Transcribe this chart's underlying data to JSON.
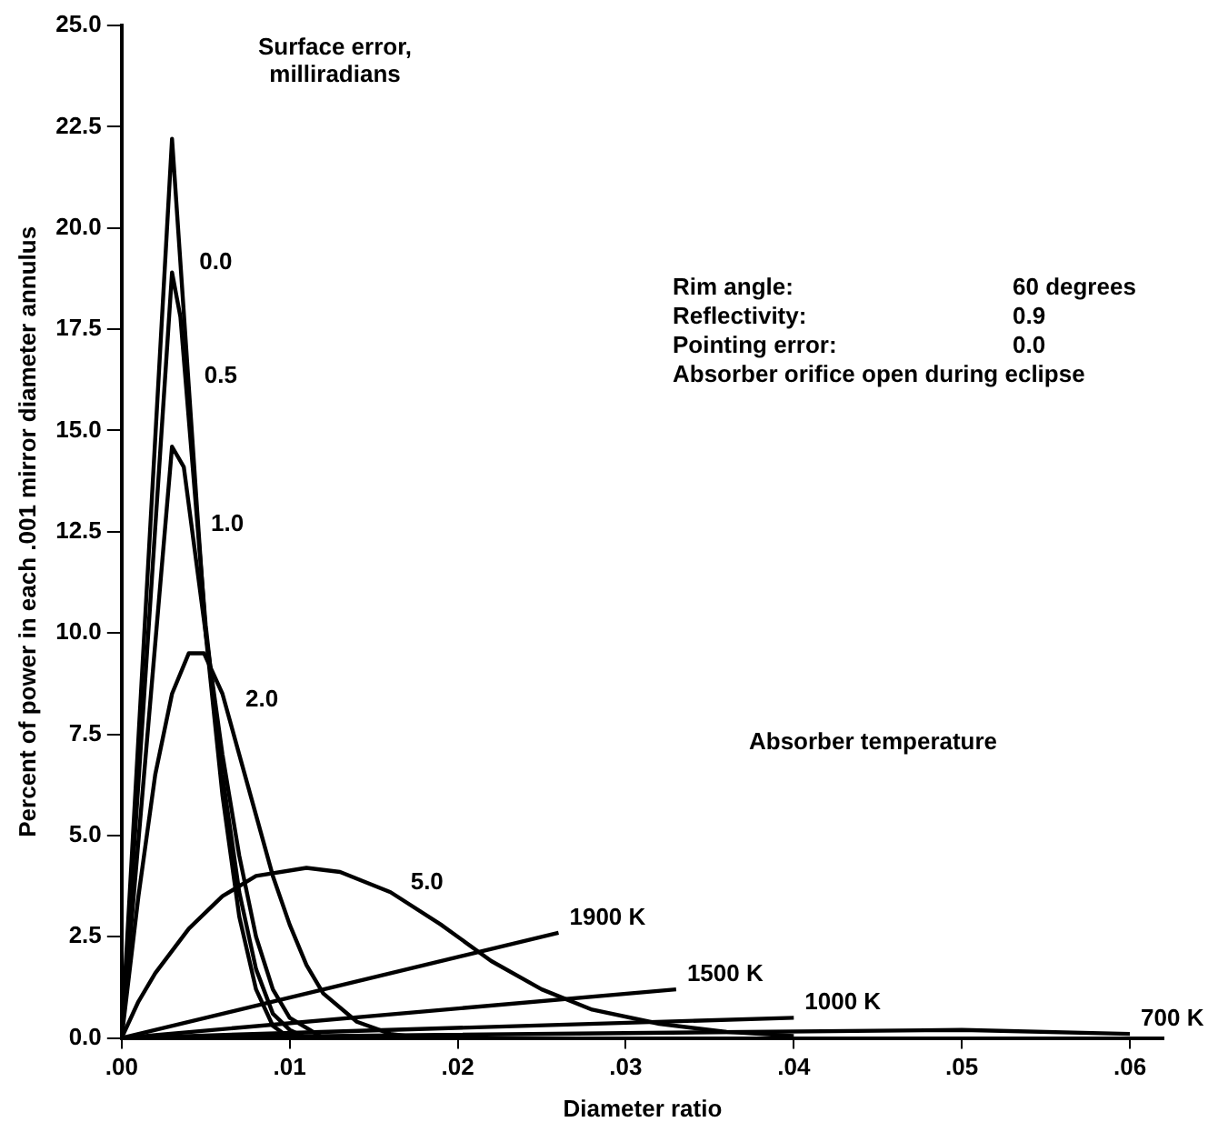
{
  "chart_data": {
    "type": "line",
    "xlabel": "Diameter ratio",
    "ylabel": "Percent of power in each .001 mirror diameter annulus",
    "xlim": [
      0,
      0.062
    ],
    "xticks": [
      {
        "value": 0,
        "label": ".00"
      },
      {
        "value": 0.01,
        "label": ".01"
      },
      {
        "value": 0.02,
        "label": ".02"
      },
      {
        "value": 0.03,
        "label": ".03"
      },
      {
        "value": 0.04,
        "label": ".04"
      },
      {
        "value": 0.05,
        "label": ".05"
      },
      {
        "value": 0.06,
        "label": ".06"
      }
    ],
    "ylim": [
      0,
      25
    ],
    "yticks": [
      {
        "value": 0,
        "label": "0.0"
      },
      {
        "value": 2.5,
        "label": "2.5"
      },
      {
        "value": 5,
        "label": "5.0"
      },
      {
        "value": 7.5,
        "label": "7.5"
      },
      {
        "value": 10,
        "label": "10.0"
      },
      {
        "value": 12.5,
        "label": "12.5"
      },
      {
        "value": 15,
        "label": "15.0"
      },
      {
        "value": 17.5,
        "label": "17.5"
      },
      {
        "value": 20,
        "label": "20.0"
      },
      {
        "value": 22.5,
        "label": "22.5"
      },
      {
        "value": 25,
        "label": "25.0"
      }
    ],
    "grid": false,
    "legend": false,
    "marker": "none",
    "annotations": [
      "Surface error,\nmilliradians",
      "Rim angle:",
      "60 degrees",
      "Reflectivity:",
      "0.9",
      "Pointing error:",
      "0.0",
      "Absorber orifice open during eclipse",
      "Absorber temperature"
    ],
    "series": [
      {
        "name": "0.0",
        "color": "#000000",
        "x": [
          0,
          0.003,
          0.0045,
          0.005,
          0.006,
          0.0065,
          0.007,
          0.008,
          0.009,
          0.01
        ],
        "values": [
          0,
          22.2,
          13,
          10,
          6,
          4.5,
          3,
          1.2,
          0.3,
          0
        ]
      },
      {
        "name": "0.5",
        "color": "#000000",
        "x": [
          0,
          0.003,
          0.0035,
          0.005,
          0.006,
          0.007,
          0.008,
          0.009,
          0.01,
          0.011
        ],
        "values": [
          0,
          18.9,
          17.8,
          10.2,
          6.5,
          3.6,
          1.7,
          0.6,
          0.2,
          0
        ]
      },
      {
        "name": "1.0",
        "color": "#000000",
        "x": [
          0,
          0.003,
          0.0037,
          0.005,
          0.006,
          0.007,
          0.008,
          0.009,
          0.01,
          0.012
        ],
        "values": [
          0,
          14.6,
          14.1,
          10,
          7,
          4.5,
          2.5,
          1.2,
          0.5,
          0
        ]
      },
      {
        "name": "2.0",
        "color": "#000000",
        "x": [
          0,
          0.001,
          0.002,
          0.003,
          0.004,
          0.0049,
          0.006,
          0.007,
          0.008,
          0.009,
          0.01,
          0.011,
          0.012,
          0.014,
          0.016,
          0.018
        ],
        "values": [
          0,
          3.5,
          6.5,
          8.5,
          9.5,
          9.5,
          8.5,
          7,
          5.5,
          4,
          2.8,
          1.8,
          1.1,
          0.4,
          0.1,
          0
        ]
      },
      {
        "name": "5.0",
        "color": "#000000",
        "x": [
          0,
          0.001,
          0.002,
          0.004,
          0.006,
          0.008,
          0.011,
          0.013,
          0.016,
          0.019,
          0.022,
          0.025,
          0.028,
          0.032,
          0.036,
          0.04
        ],
        "values": [
          0,
          0.9,
          1.6,
          2.7,
          3.5,
          4,
          4.2,
          4.1,
          3.6,
          2.8,
          1.9,
          1.2,
          0.7,
          0.35,
          0.15,
          0.05
        ]
      },
      {
        "name": "1900 K",
        "color": "#000000",
        "x": [
          0,
          0.026
        ],
        "values": [
          0,
          2.6
        ]
      },
      {
        "name": "1500 K",
        "color": "#000000",
        "x": [
          0,
          0.033
        ],
        "values": [
          0,
          1.2
        ]
      },
      {
        "name": "1000 K",
        "color": "#000000",
        "x": [
          0,
          0.04
        ],
        "values": [
          0,
          0.5
        ]
      },
      {
        "name": "700 K",
        "color": "#000000",
        "x": [
          0,
          0.05,
          0.06
        ],
        "values": [
          0,
          0.2,
          0.1
        ]
      }
    ]
  }
}
